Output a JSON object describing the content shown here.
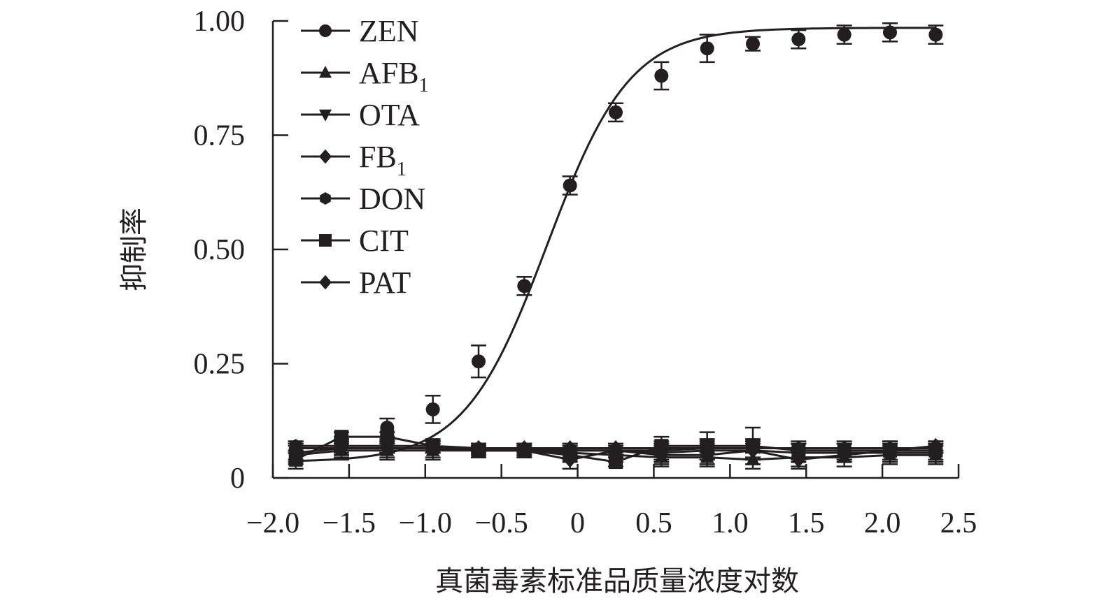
{
  "chart_data": {
    "type": "scatter",
    "title": "",
    "xlabel": "真菌毒素标准品质量浓度对数",
    "ylabel": "抑制率",
    "xlim": [
      -2.0,
      2.5
    ],
    "ylim": [
      0,
      1.0
    ],
    "x_ticks": [
      "−2.0",
      "−1.5",
      "−1.0",
      "−0.5",
      "0",
      "0.5",
      "1.0",
      "1.5",
      "2.0",
      "2.5"
    ],
    "y_ticks": [
      "0",
      "0.25",
      "0.50",
      "0.75",
      "1.00"
    ],
    "x": [
      -1.85,
      -1.55,
      -1.25,
      -0.95,
      -0.65,
      -0.35,
      -0.05,
      0.25,
      0.55,
      0.85,
      1.15,
      1.45,
      1.75,
      2.05,
      2.35
    ],
    "legend_position": "top-left",
    "grid": false,
    "color": "#231f20",
    "series": [
      {
        "name": "ZEN",
        "marker": "circle",
        "fit": "sigmoid",
        "values": [
          0.06,
          0.07,
          0.11,
          0.15,
          0.255,
          0.42,
          0.64,
          0.8,
          0.88,
          0.94,
          0.95,
          0.96,
          0.97,
          0.975,
          0.97
        ],
        "errors": [
          0.02,
          0.02,
          0.02,
          0.03,
          0.035,
          0.02,
          0.02,
          0.02,
          0.03,
          0.03,
          0.015,
          0.02,
          0.02,
          0.02,
          0.02
        ]
      },
      {
        "name": "AFB1",
        "marker": "triangle-up",
        "values": [
          0.05,
          0.06,
          0.06,
          0.06,
          0.06,
          0.06,
          0.055,
          0.05,
          0.045,
          0.045,
          0.04,
          0.045,
          0.045,
          0.05,
          0.05
        ],
        "errors": [
          0.02,
          0.02,
          0.02,
          0.02,
          0.015,
          0.015,
          0.015,
          0.015,
          0.02,
          0.02,
          0.02,
          0.02,
          0.02,
          0.02,
          0.02
        ]
      },
      {
        "name": "OTA",
        "marker": "triangle-down",
        "values": [
          0.055,
          0.065,
          0.065,
          0.065,
          0.06,
          0.06,
          0.06,
          0.06,
          0.055,
          0.06,
          0.06,
          0.055,
          0.055,
          0.055,
          0.055
        ],
        "errors": [
          0.02,
          0.02,
          0.02,
          0.02,
          0.015,
          0.015,
          0.015,
          0.015,
          0.02,
          0.02,
          0.02,
          0.02,
          0.02,
          0.02,
          0.02
        ]
      },
      {
        "name": "FB1",
        "marker": "diamond",
        "values": [
          0.065,
          0.065,
          0.065,
          0.065,
          0.065,
          0.065,
          0.065,
          0.065,
          0.065,
          0.065,
          0.065,
          0.065,
          0.065,
          0.065,
          0.065
        ],
        "errors": [
          0.01,
          0.01,
          0.01,
          0.01,
          0.01,
          0.01,
          0.01,
          0.01,
          0.01,
          0.01,
          0.01,
          0.01,
          0.01,
          0.01,
          0.01
        ]
      },
      {
        "name": "DON",
        "marker": "hexagon",
        "values": [
          0.07,
          0.07,
          0.07,
          0.07,
          0.065,
          0.065,
          0.06,
          0.06,
          0.06,
          0.065,
          0.065,
          0.065,
          0.065,
          0.065,
          0.065
        ],
        "errors": [
          0.01,
          0.01,
          0.01,
          0.01,
          0.01,
          0.01,
          0.01,
          0.01,
          0.02,
          0.02,
          0.02,
          0.01,
          0.01,
          0.01,
          0.01
        ]
      },
      {
        "name": "CIT",
        "marker": "square",
        "values": [
          0.04,
          0.09,
          0.09,
          0.07,
          0.06,
          0.06,
          0.05,
          0.035,
          0.07,
          0.07,
          0.07,
          0.06,
          0.06,
          0.06,
          0.06
        ],
        "errors": [
          0.02,
          0.01,
          0.01,
          0.01,
          0.01,
          0.01,
          0.015,
          0.01,
          0.02,
          0.03,
          0.04,
          0.02,
          0.02,
          0.02,
          0.02
        ]
      },
      {
        "name": "PAT",
        "marker": "diamond",
        "values": [
          0.065,
          0.065,
          0.065,
          0.065,
          0.065,
          0.06,
          0.04,
          0.06,
          0.05,
          0.05,
          0.06,
          0.04,
          0.05,
          0.06,
          0.07
        ],
        "errors": [
          0.01,
          0.01,
          0.01,
          0.01,
          0.01,
          0.01,
          0.02,
          0.01,
          0.02,
          0.02,
          0.02,
          0.02,
          0.01,
          0.02,
          0.01
        ]
      }
    ]
  }
}
